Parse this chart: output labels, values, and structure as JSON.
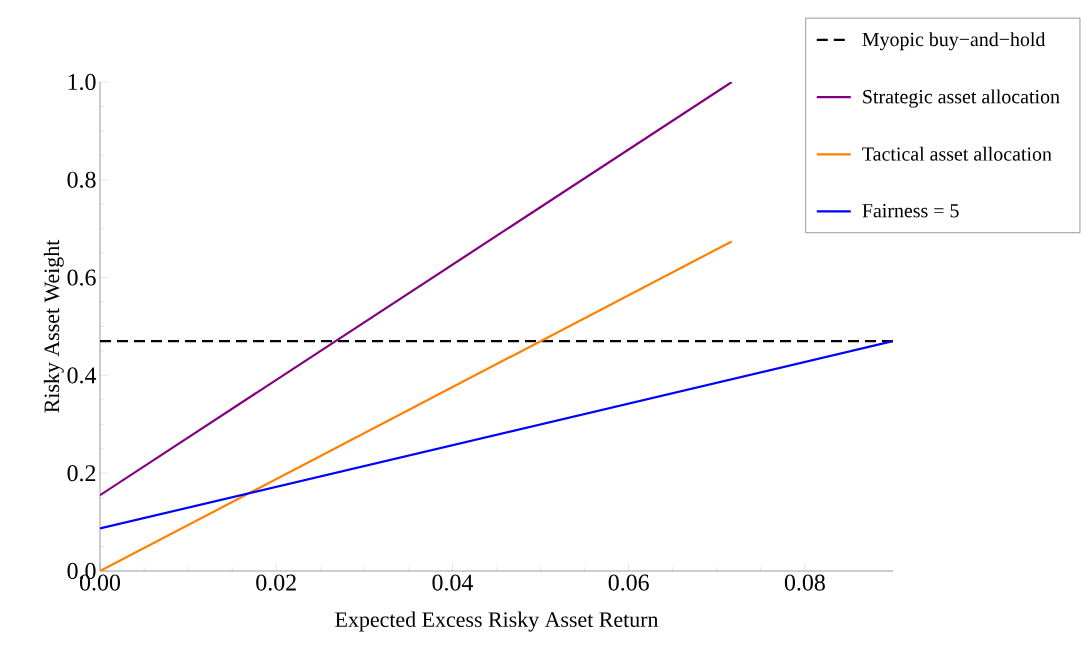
{
  "chart_data": {
    "type": "line",
    "xlabel": "Expected Excess Risky Asset Return",
    "ylabel": "Risky Asset Weight",
    "xlim": [
      0,
      0.09
    ],
    "ylim": [
      0,
      1.0
    ],
    "xticks": [
      {
        "value": 0,
        "label": "0.00"
      },
      {
        "value": 0.02,
        "label": "0.02"
      },
      {
        "value": 0.04,
        "label": "0.04"
      },
      {
        "value": 0.06,
        "label": "0.06"
      },
      {
        "value": 0.08,
        "label": "0.08"
      }
    ],
    "yticks": [
      {
        "value": 0,
        "label": "0.0"
      },
      {
        "value": 0.2,
        "label": "0.2"
      },
      {
        "value": 0.4,
        "label": "0.4"
      },
      {
        "value": 0.6,
        "label": "0.6"
      },
      {
        "value": 0.8,
        "label": "0.8"
      },
      {
        "value": 1.0,
        "label": "1.0"
      }
    ],
    "legend": "top right",
    "marker": "none",
    "series": [
      {
        "name": "Myopic buy−and−hold",
        "color": "#000000",
        "line_style": "dashed",
        "x": [
          0,
          0.09
        ],
        "values": [
          0.47,
          0.47
        ]
      },
      {
        "name": "Strategic asset allocation",
        "color": "#800080",
        "line_style": "solid",
        "x": [
          0,
          0.0717
        ],
        "values": [
          0.155,
          1.0
        ]
      },
      {
        "name": "Tactical asset allocation",
        "color": "#ff8000",
        "line_style": "solid",
        "x": [
          0,
          0.0717
        ],
        "values": [
          0,
          0.674
        ]
      },
      {
        "name": "Fairness = 5",
        "color": "#0000ff",
        "line_style": "solid",
        "x": [
          0,
          0.09
        ],
        "values": [
          0.087,
          0.47
        ]
      }
    ]
  }
}
